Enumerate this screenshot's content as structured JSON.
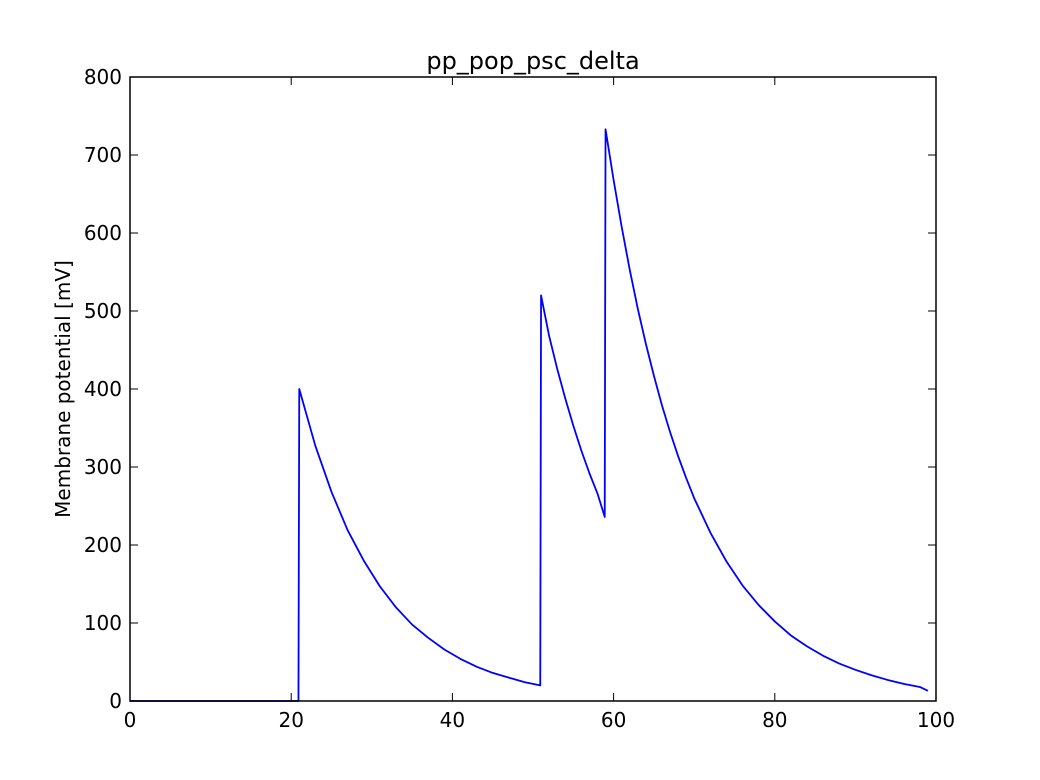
{
  "chart_data": {
    "type": "line",
    "title": "pp_pop_psc_delta",
    "xlabel": "",
    "ylabel": "Membrane potential [mV]",
    "xlim": [
      0,
      100
    ],
    "ylim": [
      0,
      800
    ],
    "xticks": [
      "0",
      "20",
      "40",
      "60",
      "80",
      "100"
    ],
    "yticks": [
      "0",
      "100",
      "200",
      "300",
      "400",
      "500",
      "600",
      "700",
      "800"
    ],
    "grid": false,
    "legend": "none",
    "series": [
      {
        "color": "#0000ff",
        "x": [
          0,
          20.9,
          21.0,
          23,
          25,
          27,
          29,
          31,
          33,
          35,
          37,
          39,
          41,
          43,
          45,
          47,
          49,
          50.9,
          51.0,
          52,
          53,
          54,
          55,
          56,
          57,
          58,
          58.9,
          59.0,
          60,
          61,
          62,
          63,
          64,
          65,
          66,
          67,
          68,
          69,
          70,
          72,
          74,
          76,
          78,
          80,
          82,
          84,
          86,
          88,
          90,
          92,
          94,
          96,
          98,
          99
        ],
        "y": [
          0,
          0,
          400,
          327,
          268,
          219,
          180,
          147,
          120,
          98,
          81,
          66,
          54,
          44,
          36,
          30,
          24,
          20,
          520,
          468,
          426,
          388,
          353,
          321,
          292,
          266,
          236,
          733,
          668,
          608,
          553,
          503,
          458,
          417,
          379,
          345,
          314,
          286,
          260,
          216,
          179,
          148,
          123,
          102,
          84,
          70,
          58,
          48,
          40,
          33,
          27,
          22,
          18,
          13
        ]
      }
    ]
  }
}
